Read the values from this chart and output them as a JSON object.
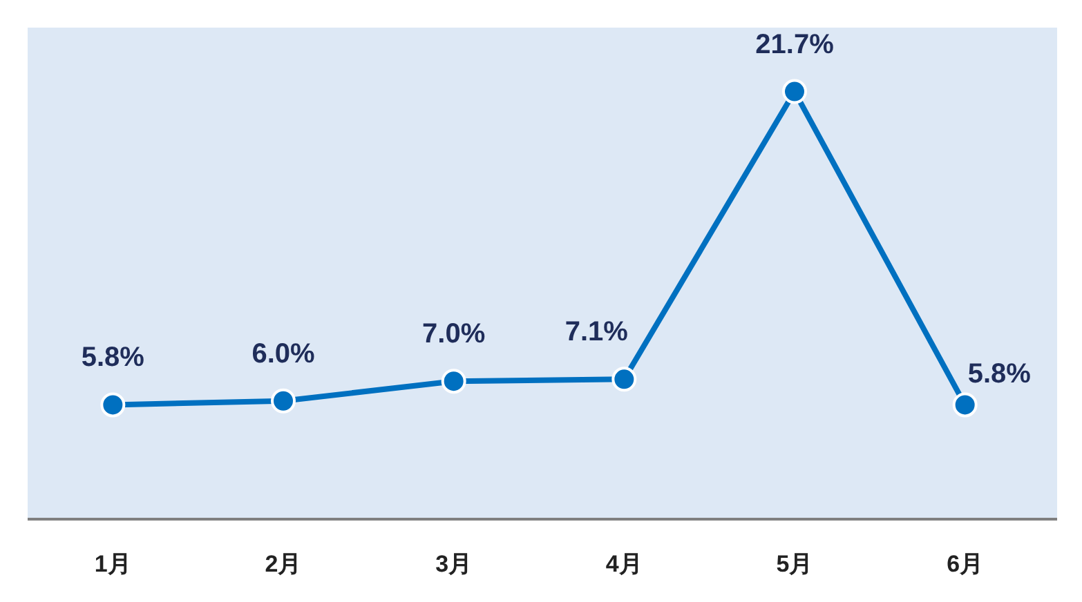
{
  "chart_data": {
    "type": "line",
    "categories": [
      "1月",
      "2月",
      "3月",
      "4月",
      "5月",
      "6月"
    ],
    "series": [
      {
        "color": "#0070c0",
        "values": [
          5.8,
          6.0,
          7.0,
          7.1,
          21.7,
          5.8
        ],
        "value_labels": [
          "5.8%",
          "6.0%",
          "7.0%",
          "7.1%",
          "21.7%",
          "5.8%"
        ]
      }
    ],
    "marker": "circle"
  }
}
